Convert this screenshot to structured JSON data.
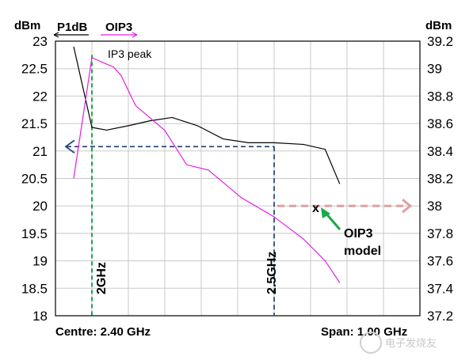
{
  "chart_data": {
    "type": "line",
    "left_axis": {
      "unit": "dBm",
      "ticks": [
        "23",
        "22.5",
        "22",
        "21.5",
        "21",
        "20.5",
        "20",
        "19.5",
        "19",
        "18.5",
        "18"
      ],
      "ylim": [
        18,
        23
      ]
    },
    "right_axis": {
      "unit": "dBm",
      "ticks": [
        "39.2",
        "39",
        "38.8",
        "38.6",
        "38.4",
        "38.2",
        "38",
        "37.8",
        "37.6",
        "37.4",
        "37.2"
      ],
      "ylim": [
        37.2,
        39.2
      ]
    },
    "x_range_ghz": [
      1.9,
      2.9
    ],
    "grid": true,
    "series": [
      {
        "name": "P1dB",
        "axis": "left",
        "color": "#000000",
        "x": [
          1.95,
          2.0,
          2.04,
          2.1,
          2.16,
          2.22,
          2.29,
          2.36,
          2.43,
          2.5,
          2.58,
          2.64,
          2.68
        ],
        "y": [
          22.9,
          21.43,
          21.38,
          21.46,
          21.55,
          21.61,
          21.46,
          21.22,
          21.15,
          21.15,
          21.12,
          21.03,
          20.4
        ]
      },
      {
        "name": "OIP3",
        "axis": "right",
        "color": "#e020e0",
        "x": [
          1.95,
          2.0,
          2.06,
          2.08,
          2.12,
          2.2,
          2.26,
          2.32,
          2.41,
          2.5,
          2.58,
          2.64,
          2.68
        ],
        "y": [
          38.2,
          39.08,
          39.01,
          38.95,
          38.73,
          38.55,
          38.3,
          38.26,
          38.06,
          37.92,
          37.76,
          37.6,
          37.44
        ]
      }
    ],
    "annotations": {
      "ip3_peak": "IP3 peak",
      "marker_2ghz": "2GHz",
      "marker_25ghz": "2.5GHz",
      "model_marker": "x",
      "model_label_line1": "OIP3",
      "model_label_line2": "model"
    },
    "footer": {
      "left": "Centre: 2.40 GHz",
      "right": "Span: 1.00 GHz"
    }
  },
  "watermark": "电子发烧友",
  "colors": {
    "p1db": "#000000",
    "oip3": "#e020e0",
    "green_marker": "#1aa84a",
    "blue_dashed": "#2a4a7a",
    "pink_arrow": "#e0a0a0",
    "grid": "#c8c8c8"
  }
}
